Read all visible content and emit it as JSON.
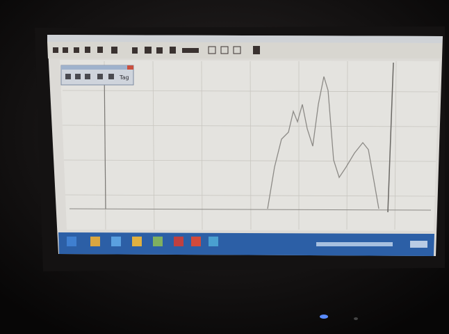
{
  "toolbar": {
    "label": "Tag"
  }
}
